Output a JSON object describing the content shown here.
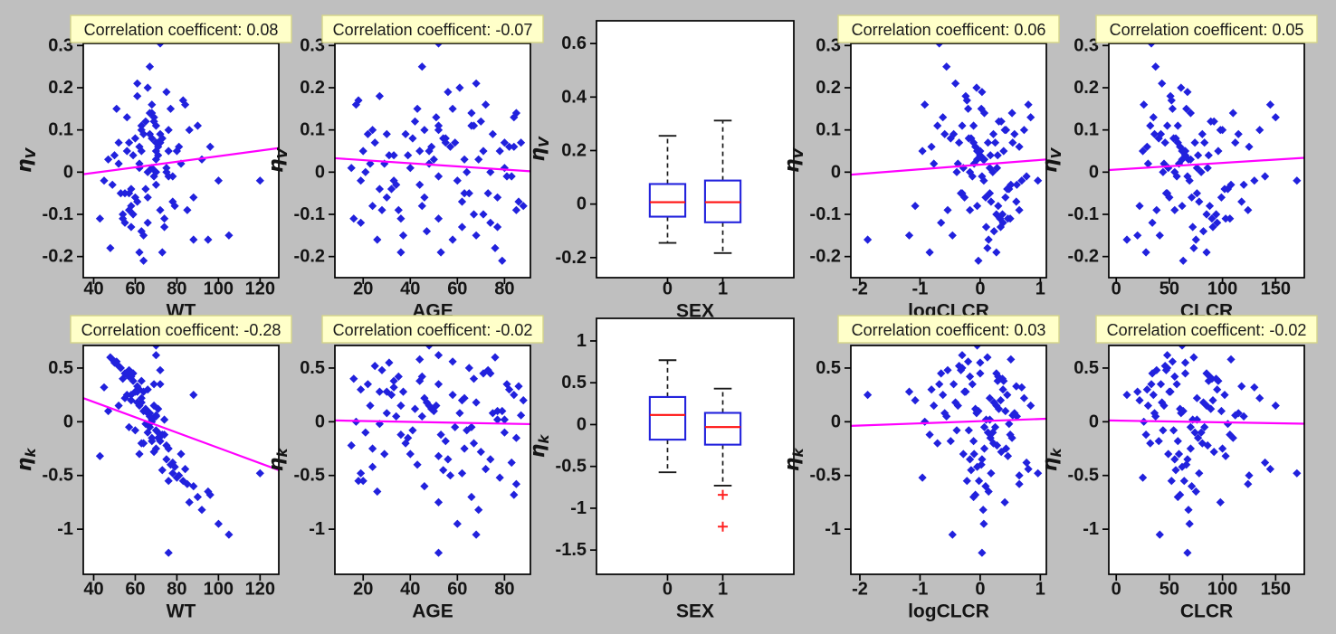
{
  "figure": {
    "background_color": "#bfbfbf",
    "plot_background": "#ffffff",
    "title_box": {
      "fill": "#ffffc9",
      "border": "#d4d48a",
      "text_color": "#1a1a1a"
    },
    "colors": {
      "marker": "#2121dd",
      "trend_line": "#ff00ff",
      "box_edge": "#2222dd",
      "median": "#ff1111",
      "outlier": "#ff2222",
      "whisker": "#1a1a1a",
      "axis": "#000000"
    },
    "row_ylabels": [
      {
        "main": "η",
        "sub": "V"
      },
      {
        "main": "η",
        "sub": "k"
      }
    ]
  },
  "subjects": {
    "wt": [
      52,
      58,
      63,
      70,
      75,
      80,
      66,
      60,
      55,
      68,
      72,
      47,
      84,
      64,
      57,
      69,
      76,
      88,
      61,
      54,
      50,
      73,
      67,
      62,
      78,
      56,
      65,
      71,
      59,
      83,
      45,
      68,
      74,
      63,
      90,
      58,
      66,
      77,
      53,
      70,
      95,
      62,
      69,
      57,
      81,
      64,
      72,
      49,
      67,
      75,
      60,
      86,
      55,
      71,
      66,
      78,
      52,
      63,
      92,
      68,
      58,
      73,
      48,
      65,
      70,
      61,
      76,
      67,
      54,
      82,
      69,
      57,
      64,
      100,
      62,
      74,
      51,
      68,
      79,
      63,
      105,
      59,
      72,
      66,
      70,
      70,
      85,
      61,
      76,
      56,
      120,
      72,
      58,
      96,
      67,
      43,
      75,
      62,
      88,
      71,
      70
    ],
    "age": [
      23,
      45,
      67,
      34,
      56,
      78,
      19,
      41,
      63,
      85,
      28,
      50,
      72,
      37,
      59,
      81,
      24,
      46,
      68,
      16,
      31,
      53,
      75,
      40,
      62,
      84,
      27,
      49,
      71,
      18,
      33,
      55,
      77,
      44,
      66,
      88,
      21,
      43,
      65,
      87,
      26,
      48,
      70,
      35,
      57,
      79,
      22,
      44,
      66,
      15,
      30,
      52,
      74,
      39,
      61,
      83,
      25,
      47,
      69,
      17,
      32,
      54,
      76,
      42,
      64,
      86,
      20,
      45,
      67,
      29,
      51,
      73,
      38,
      60,
      82,
      36,
      58,
      80,
      24,
      46,
      68,
      33,
      55,
      77,
      52,
      63,
      85,
      27,
      52,
      71,
      19,
      52,
      62,
      84,
      30,
      52,
      74,
      36,
      58,
      80,
      48
    ],
    "sex": [
      0,
      1,
      0,
      1,
      1,
      0,
      0,
      1,
      0,
      1,
      1,
      0,
      0,
      1,
      0,
      1,
      0,
      0,
      1,
      1,
      0,
      1,
      0,
      0,
      1,
      0,
      1,
      1,
      0,
      1,
      0,
      0,
      1,
      0,
      1,
      1,
      0,
      1,
      0,
      0,
      1,
      0,
      1,
      1,
      0,
      1,
      0,
      0,
      1,
      0,
      1,
      1,
      0,
      1,
      0,
      0,
      1,
      0,
      1,
      0,
      0,
      1,
      1,
      0,
      1,
      0,
      1,
      0,
      0,
      1,
      1,
      0,
      1,
      0,
      0,
      1,
      0,
      1,
      1,
      0,
      1,
      0,
      0,
      1,
      0,
      1,
      1,
      0,
      1,
      0,
      0,
      1,
      0,
      1,
      1,
      0,
      1,
      0,
      0,
      1,
      0
    ],
    "clcr": [
      45,
      88,
      32,
      120,
      67,
      25,
      95,
      54,
      76,
      110,
      38,
      62,
      145,
      20,
      83,
      57,
      100,
      71,
      43,
      90,
      65,
      28,
      115,
      49,
      78,
      35,
      105,
      60,
      85,
      52,
      130,
      40,
      72,
      96,
      58,
      22,
      80,
      66,
      48,
      112,
      75,
      30,
      92,
      55,
      125,
      63,
      42,
      108,
      70,
      86,
      50,
      98,
      34,
      77,
      61,
      140,
      46,
      82,
      68,
      26,
      102,
      56,
      73,
      89,
      44,
      118,
      64,
      37,
      94,
      59,
      150,
      47,
      81,
      69,
      29,
      107,
      53,
      76,
      62,
      135,
      41,
      87,
      58,
      99,
      48,
      70,
      124,
      51,
      67,
      65,
      170,
      33,
      91,
      60,
      36,
      103,
      55,
      85,
      10,
      74,
      62
    ],
    "logclcr": [
      -0.37,
      0.3,
      -0.71,
      0.61,
      0.03,
      -0.96,
      0.38,
      -0.19,
      0.16,
      0.53,
      -0.54,
      -0.05,
      0.8,
      -1.18,
      0.25,
      -0.13,
      0.43,
      0.09,
      -0.41,
      0.33,
      0,
      -0.84,
      0.57,
      -0.28,
      0.18,
      -0.62,
      0.48,
      -0.08,
      0.27,
      -0.22,
      0.69,
      -0.49,
      0.1,
      0.39,
      -0.11,
      -1.08,
      0.21,
      0.02,
      -0.3,
      0.54,
      0.14,
      -0.77,
      0.35,
      -0.17,
      0.65,
      -0.03,
      -0.44,
      0.51,
      0.07,
      0.28,
      -0.26,
      0.41,
      -0.65,
      0.17,
      -0.06,
      0.77,
      -0.35,
      0.23,
      0.05,
      -0.92,
      0.45,
      -0.15,
      0.12,
      0.31,
      -0.39,
      0.6,
      -0.02,
      -0.56,
      0.37,
      -0.1,
      0.84,
      -0.32,
      0.22,
      0.06,
      -0.81,
      0.5,
      -0.2,
      0.16,
      -0.05,
      0.73,
      -0.46,
      0.29,
      -0.11,
      0.42,
      -0.3,
      0.07,
      0.65,
      -0.24,
      0.03,
      0,
      0.96,
      -0.68,
      0.34,
      -0.08,
      -0.59,
      0.46,
      -0.17,
      0.27,
      -1.87,
      0.13,
      -0.05
    ],
    "eta_v": [
      0.02,
      -0.08,
      0.11,
      -0.03,
      0.19,
      0.05,
      -0.12,
      0.08,
      -0.05,
      0.14,
      -0.09,
      0.03,
      0.16,
      -0.15,
      0.07,
      -0.01,
      0.1,
      -0.06,
      0.21,
      -0.11,
      0.04,
      -0.19,
      0.09,
      0.01,
      -0.07,
      0.13,
      -0.04,
      0.06,
      -0.1,
      0.17,
      -0.02,
      0.08,
      -0.13,
      0.05,
      0.11,
      -0.08,
      0,
      0.15,
      -0.05,
      0.07,
      -0.16,
      0.02,
      0.12,
      -0.09,
      0.06,
      -0.21,
      0.09,
      -0.03,
      0.14,
      0.01,
      -0.06,
      0.1,
      -0.12,
      0.04,
      0.2,
      -0.01,
      0.07,
      -0.14,
      0.03,
      0.16,
      -0.04,
      0.08,
      -0.18,
      0.12,
      0,
      -0.07,
      0.05,
      0.25,
      -0.1,
      0.02,
      0.13,
      -0.05,
      0.09,
      -0.02,
      0.06,
      -0.11,
      0.15,
      0.01,
      -0.08,
      0.1,
      -0.15,
      0.04,
      0.07,
      -0.06,
      0.11,
      0.03,
      -0.09,
      0.18,
      -0.01,
      0.05,
      -0.02,
      0.305,
      -0.13,
      0.06,
      0.09,
      -0.11,
      0,
      -0.19,
      -0.16,
      0.07,
      0.05
    ],
    "eta_k": [
      0.15,
      0.42,
      -0.2,
      0.05,
      -0.35,
      -0.52,
      0.3,
      -0.08,
      0.22,
      -0.15,
      0.48,
      0.1,
      -0.44,
      0.28,
      -0.05,
      0.35,
      -0.25,
      -0.6,
      0.18,
      0.4,
      0.55,
      -0.12,
      0.08,
      -0.3,
      -0.48,
      0.25,
      -0.02,
      0.12,
      0.45,
      -0.55,
      0.32,
      -0.18,
      0.02,
      0.38,
      -0.7,
      0.2,
      -0.1,
      -0.4,
      0.5,
      0.06,
      -0.65,
      0.15,
      -0.28,
      0.42,
      -0.5,
      0.1,
      0.35,
      0.58,
      -0.05,
      -0.22,
      0.28,
      -0.75,
      0.45,
      -0.15,
      0.08,
      -0.38,
      0.52,
      0.18,
      -0.82,
      0,
      0.25,
      -0.45,
      0.6,
      0.12,
      -0.08,
      0.33,
      -0.55,
      0.05,
      0.4,
      -0.3,
      0.15,
      0.48,
      -0.2,
      -0.95,
      0.3,
      -0.12,
      0.56,
      0.02,
      -0.42,
      0.22,
      -1.05,
      0.38,
      -0.18,
      0.1,
      0.62,
      -0.25,
      -0.58,
      0.28,
      -1.22,
      0.45,
      -0.48,
      0.35,
      0.2,
      -0.68,
      0.08,
      -0.32,
      -0.35,
      0.15,
      0.25,
      -0.1,
      0.71
    ]
  },
  "chart_data": [
    {
      "id": "etaV-vs-WT",
      "type": "scatter",
      "row": 0,
      "col": 0,
      "title": "Correlation coefficent: 0.08",
      "correlation": 0.08,
      "xlabel": "WT",
      "x_column": "wt",
      "y_column": "eta_v",
      "xlim": [
        35,
        129
      ],
      "ylim": [
        -0.25,
        0.305
      ],
      "xtick_vals": [
        40,
        60,
        80,
        100,
        120
      ],
      "xtick_labels": [
        "40",
        "60",
        "80",
        "100",
        "120"
      ],
      "ytick_vals": [
        0.3,
        0.2,
        0.1,
        0,
        -0.1,
        -0.2
      ],
      "ytick_labels": [
        "0.3",
        "0.2",
        "0.1",
        "0",
        "-0.1",
        "-0.2"
      ],
      "trend": [
        [
          35,
          -0.005
        ],
        [
          129,
          0.057
        ]
      ]
    },
    {
      "id": "etaV-vs-AGE",
      "type": "scatter",
      "row": 0,
      "col": 1,
      "title": "Correlation coefficent: -0.07",
      "correlation": -0.07,
      "xlabel": "AGE",
      "x_column": "age",
      "y_column": "eta_v",
      "xlim": [
        8,
        91
      ],
      "ylim": [
        -0.25,
        0.305
      ],
      "xtick_vals": [
        20,
        40,
        60,
        80
      ],
      "xtick_labels": [
        "20",
        "40",
        "60",
        "80"
      ],
      "ytick_vals": [
        0.3,
        0.2,
        0.1,
        0,
        -0.1,
        -0.2
      ],
      "ytick_labels": [
        "0.3",
        "0.2",
        "0.1",
        "0",
        "-0.1",
        "-0.2"
      ],
      "trend": [
        [
          8,
          0.033
        ],
        [
          91,
          0.002
        ]
      ]
    },
    {
      "id": "etaV-vs-SEX",
      "type": "box",
      "row": 0,
      "col": 2,
      "xlabel": "SEX",
      "y_column": "eta_v",
      "ylim": [
        -0.275,
        0.685
      ],
      "ytick_vals": [
        0.6,
        0.4,
        0.2,
        0,
        -0.2
      ],
      "ytick_labels": [
        "0.6",
        "0.4",
        "0.2",
        "0",
        "-0.2"
      ],
      "group_pos": [
        0.36,
        0.64
      ],
      "box_width_frac": 0.18,
      "xtick_labels": [
        "0",
        "1"
      ],
      "groups": [
        {
          "label": "0",
          "whisker_high": 0.255,
          "q3": 0.075,
          "median": 0.007,
          "q1": -0.047,
          "whisker_low": -0.145,
          "outliers": []
        },
        {
          "label": "1",
          "whisker_high": 0.312,
          "q3": 0.088,
          "median": 0.007,
          "q1": -0.068,
          "whisker_low": -0.183,
          "outliers": []
        }
      ]
    },
    {
      "id": "etaV-vs-logCLCR",
      "type": "scatter",
      "row": 0,
      "col": 3,
      "title": "Correlation coefficent: 0.06",
      "correlation": 0.06,
      "xlabel": "logCLCR",
      "x_column": "logclcr",
      "y_column": "eta_v",
      "xlim": [
        -2.15,
        1.1
      ],
      "ylim": [
        -0.25,
        0.305
      ],
      "xtick_vals": [
        -2,
        -1,
        0,
        1
      ],
      "xtick_labels": [
        "-2",
        "-1",
        "0",
        "1"
      ],
      "ytick_vals": [
        0.3,
        0.2,
        0.1,
        0,
        -0.1,
        -0.2
      ],
      "ytick_labels": [
        "0.3",
        "0.2",
        "0.1",
        "0",
        "-0.1",
        "-0.2"
      ],
      "trend": [
        [
          -2.15,
          -0.006
        ],
        [
          1.1,
          0.03
        ]
      ]
    },
    {
      "id": "etaV-vs-CLCR",
      "type": "scatter",
      "row": 0,
      "col": 4,
      "title": "Correlation coefficent: 0.05",
      "correlation": 0.05,
      "xlabel": "CLCR",
      "x_column": "clcr",
      "y_column": "eta_v",
      "xlim": [
        -7,
        177
      ],
      "ylim": [
        -0.25,
        0.305
      ],
      "xtick_vals": [
        0,
        50,
        100,
        150
      ],
      "xtick_labels": [
        "0",
        "50",
        "100",
        "150"
      ],
      "ytick_vals": [
        0.3,
        0.2,
        0.1,
        0,
        -0.1,
        -0.2
      ],
      "ytick_labels": [
        "0.3",
        "0.2",
        "0.1",
        "0",
        "-0.1",
        "-0.2"
      ],
      "trend": [
        [
          -7,
          0.005
        ],
        [
          177,
          0.034
        ]
      ]
    },
    {
      "id": "etak-vs-WT",
      "type": "scatter",
      "row": 1,
      "col": 0,
      "title": "Correlation coefficent: -0.28",
      "correlation": -0.28,
      "xlabel": "WT",
      "x_column": "wt",
      "y_column": "eta_k",
      "xlim": [
        35,
        129
      ],
      "ylim": [
        -1.42,
        0.71
      ],
      "xtick_vals": [
        40,
        60,
        80,
        100,
        120
      ],
      "xtick_labels": [
        "40",
        "60",
        "80",
        "100",
        "120"
      ],
      "ytick_vals": [
        0.5,
        0,
        -0.5,
        -1
      ],
      "ytick_labels": [
        "0.5",
        "0",
        "-0.5",
        "-1"
      ],
      "trend": [
        [
          35,
          0.22
        ],
        [
          129,
          -0.45
        ]
      ]
    },
    {
      "id": "etak-vs-AGE",
      "type": "scatter",
      "row": 1,
      "col": 1,
      "title": "Correlation coefficent: -0.02",
      "correlation": -0.02,
      "xlabel": "AGE",
      "x_column": "age",
      "y_column": "eta_k",
      "xlim": [
        8,
        91
      ],
      "ylim": [
        -1.42,
        0.71
      ],
      "xtick_vals": [
        20,
        40,
        60,
        80
      ],
      "xtick_labels": [
        "20",
        "40",
        "60",
        "80"
      ],
      "ytick_vals": [
        0.5,
        0,
        -0.5,
        -1
      ],
      "ytick_labels": [
        "0.5",
        "0",
        "-0.5",
        "-1"
      ],
      "trend": [
        [
          8,
          0.012
        ],
        [
          91,
          -0.022
        ]
      ]
    },
    {
      "id": "etak-vs-SEX",
      "type": "box",
      "row": 1,
      "col": 2,
      "xlabel": "SEX",
      "y_column": "eta_k",
      "ylim": [
        -1.79,
        1.27
      ],
      "ytick_vals": [
        1,
        0.5,
        0,
        -0.5,
        -1,
        -1.5
      ],
      "ytick_labels": [
        "1",
        "0.5",
        "0",
        "-0.5",
        "-1",
        "-1.5"
      ],
      "group_pos": [
        0.36,
        0.64
      ],
      "box_width_frac": 0.18,
      "xtick_labels": [
        "0",
        "1"
      ],
      "groups": [
        {
          "label": "0",
          "whisker_high": 0.77,
          "q3": 0.33,
          "median": 0.115,
          "q1": -0.18,
          "whisker_low": -0.57,
          "outliers": []
        },
        {
          "label": "1",
          "whisker_high": 0.43,
          "q3": 0.14,
          "median": -0.03,
          "q1": -0.24,
          "whisker_low": -0.73,
          "outliers": [
            -0.84,
            -1.22
          ]
        }
      ]
    },
    {
      "id": "etak-vs-logCLCR",
      "type": "scatter",
      "row": 1,
      "col": 3,
      "title": "Correlation coefficent: 0.03",
      "correlation": 0.03,
      "xlabel": "logCLCR",
      "x_column": "logclcr",
      "y_column": "eta_k",
      "xlim": [
        -2.15,
        1.1
      ],
      "ylim": [
        -1.42,
        0.71
      ],
      "xtick_vals": [
        -2,
        -1,
        0,
        1
      ],
      "xtick_labels": [
        "-2",
        "-1",
        "0",
        "1"
      ],
      "ytick_vals": [
        0.5,
        0,
        -0.5,
        -1
      ],
      "ytick_labels": [
        "0.5",
        "0",
        "-0.5",
        "-1"
      ],
      "trend": [
        [
          -2.15,
          -0.038
        ],
        [
          1.1,
          0.028
        ]
      ]
    },
    {
      "id": "etak-vs-CLCR",
      "type": "scatter",
      "row": 1,
      "col": 4,
      "title": "Correlation coefficent: -0.02",
      "correlation": -0.02,
      "xlabel": "CLCR",
      "x_column": "clcr",
      "y_column": "eta_k",
      "xlim": [
        -7,
        177
      ],
      "ylim": [
        -1.42,
        0.71
      ],
      "xtick_vals": [
        0,
        50,
        100,
        150
      ],
      "xtick_labels": [
        "0",
        "50",
        "100",
        "150"
      ],
      "ytick_vals": [
        0.5,
        0,
        -0.5,
        -1
      ],
      "ytick_labels": [
        "0.5",
        "0",
        "-0.5",
        "-1"
      ],
      "trend": [
        [
          -7,
          0.012
        ],
        [
          177,
          -0.018
        ]
      ]
    }
  ]
}
